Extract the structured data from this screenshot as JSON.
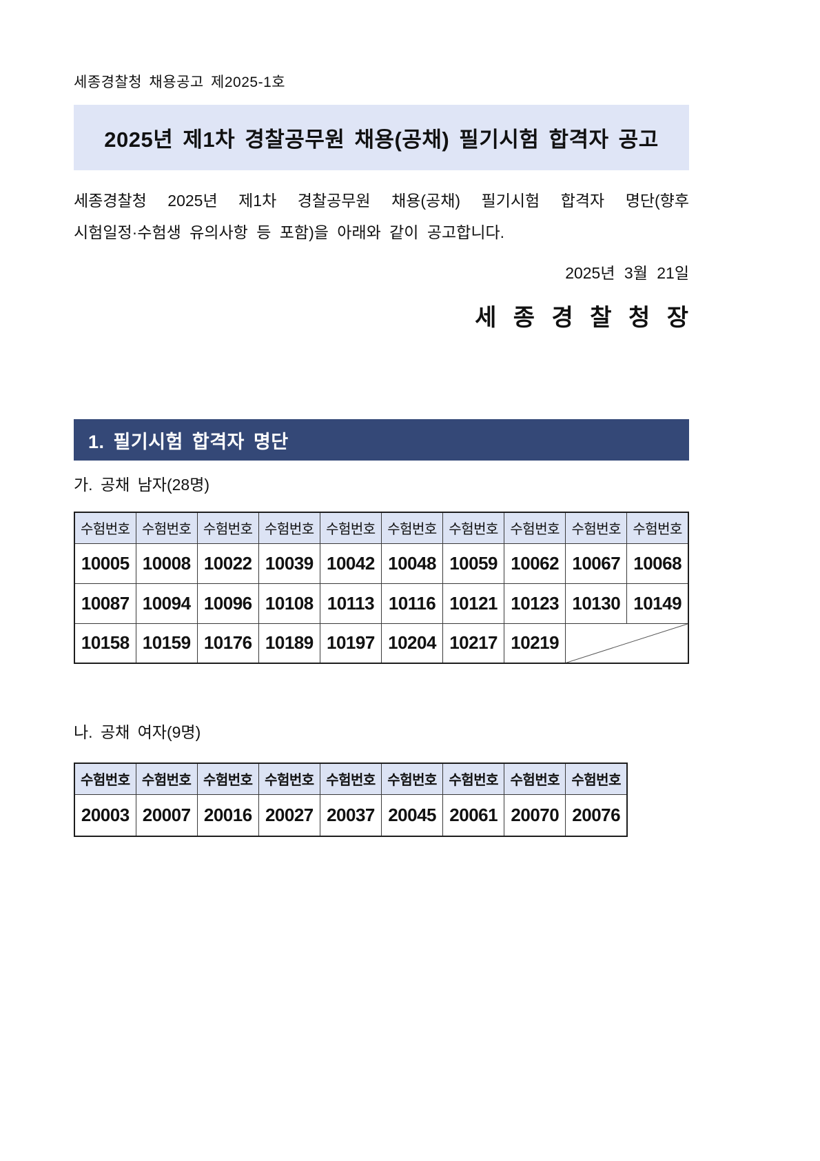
{
  "page": {
    "doc_number": "세종경찰청 채용공고 제2025-1호",
    "title": "2025년 제1차 경찰공무원 채용(공채) 필기시험 합격자 공고",
    "intro_line1": "세종경찰청 2025년 제1차 경찰공무원 채용(공채) 필기시험 합격자 명단(향후",
    "intro_line2": "시험일정·수험생 유의사항 등 포함)을 아래와 같이 공고합니다.",
    "date": "2025년 3월 21일",
    "signer": "세 종 경 찰 청 장",
    "section1_title": "1. 필기시험 합격자 명단"
  },
  "colors": {
    "title_banner_bg": "#dfe5f6",
    "section_banner_bg": "#344877",
    "table_header_bg": "#dce3f4"
  },
  "tables": [
    {
      "caption": "가. 공채 남자(28명)",
      "columns": 10,
      "header": "수험번호",
      "rows": [
        [
          "10005",
          "10008",
          "10022",
          "10039",
          "10042",
          "10048",
          "10059",
          "10062",
          "10067",
          "10068"
        ],
        [
          "10087",
          "10094",
          "10096",
          "10108",
          "10113",
          "10116",
          "10121",
          "10123",
          "10130",
          "10149"
        ],
        [
          "10158",
          "10159",
          "10176",
          "10189",
          "10197",
          "10204",
          "10217",
          "10219"
        ]
      ],
      "last_row_merged_diagonal": true
    },
    {
      "caption": "나. 공채 여자(9명)",
      "columns": 9,
      "header": "수험번호",
      "rows": [
        [
          "20003",
          "20007",
          "20016",
          "20027",
          "20037",
          "20045",
          "20061",
          "20070",
          "20076"
        ]
      ],
      "last_row_merged_diagonal": false
    }
  ]
}
